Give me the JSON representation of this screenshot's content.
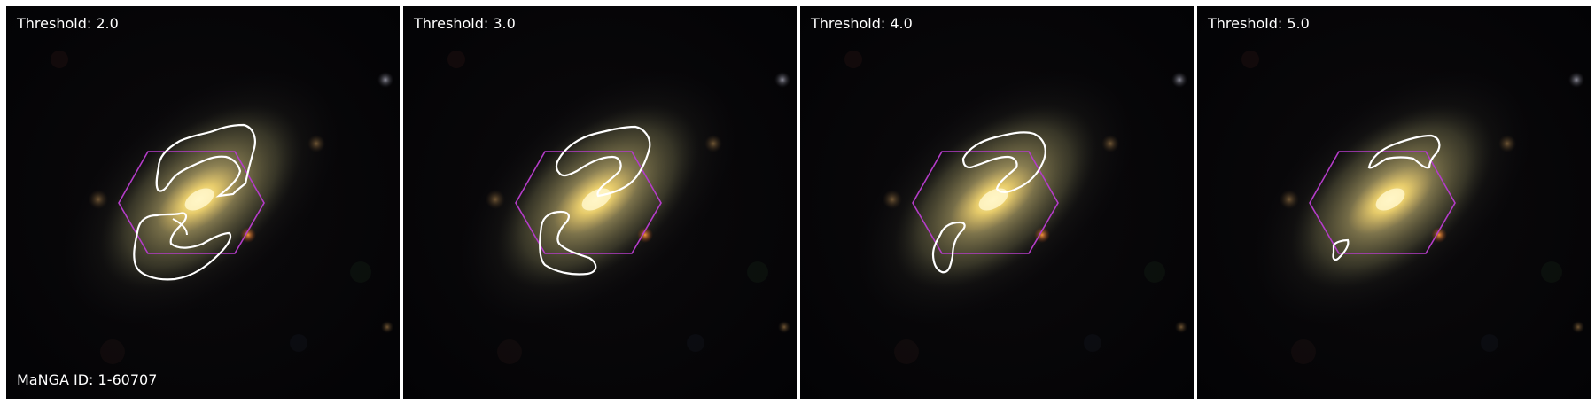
{
  "figure": {
    "panels": [
      {
        "threshold_label": "Threshold: 2.0"
      },
      {
        "threshold_label": "Threshold: 3.0"
      },
      {
        "threshold_label": "Threshold: 4.0"
      },
      {
        "threshold_label": "Threshold: 5.0"
      }
    ],
    "id_label": "MaNGA ID: 1-60707"
  },
  "colors": {
    "background": "#050507",
    "contour": "#ffffff",
    "hexagon": "#b43cc8",
    "galaxy_core": "#fff2a0",
    "galaxy_disk": "#8a845a"
  }
}
